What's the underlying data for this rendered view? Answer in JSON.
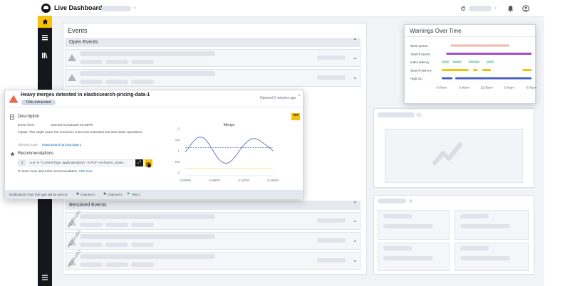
{
  "app": {
    "title": "Live Dashboard"
  },
  "colors": {
    "accent": "#f4c20a",
    "sidebar": "#16171c",
    "danger": "#e7664c",
    "link": "#006bb8"
  },
  "topbar": {
    "icons": [
      "refresh-icon",
      "bell-icon",
      "user-icon"
    ]
  },
  "events": {
    "title": "Events",
    "open_header": "Open Events",
    "resolved_header": "Resolved Events",
    "resolved_tag": "RESOLVED"
  },
  "card": {
    "title": "Heavy merges detected in elasticsearch-pricing-data-1",
    "badge": "Disk-exhausted",
    "opened": "Opened 2 minutes ago",
    "description_heading": "Description",
    "event_time_label": "Event Time:",
    "event_time_value": "Opened at 01/15/20 01:03PM",
    "impact": "Impact: This might cause the resources to become saturated and slow down operations.",
    "affected_label": "Affected node:",
    "affected_value": "elasticsearch-pricing-data-1",
    "recommendations_heading": "Recommendations",
    "rec_number": "1",
    "command": "curl -H \"Content-Type: application/json\" -X PUT <es-host>/_cluste...",
    "learn_more": "To learn more about this recommendation,",
    "learn_link": "click here",
    "footer_label": "Notifications from this type will be sent to:",
    "channels": [
      "Channel 1",
      "Channel 2",
      "Test 1"
    ]
  },
  "chart_data": [
    {
      "type": "line",
      "title": "Merge",
      "x": [
        "6:00PM",
        "6:05PM",
        "6:10PM",
        "6:15PM"
      ],
      "yticks": [
        "2",
        "1.5",
        "1",
        "0.5",
        "0"
      ],
      "ylim": [
        0,
        2
      ],
      "series": [
        {
          "x": [
            0,
            0.5,
            1,
            1.5,
            2,
            2.5,
            3,
            3.5,
            4,
            4.5,
            5,
            5.5,
            6,
            6.5,
            7,
            7.5,
            8,
            8.5,
            9,
            9.5,
            10,
            10.5,
            11,
            11.5,
            12,
            12.5,
            13,
            13.5,
            14,
            14.5,
            15
          ],
          "y": [
            0.95,
            1.1,
            1.3,
            1.46,
            1.58,
            1.63,
            1.6,
            1.5,
            1.33,
            1.12,
            0.9,
            0.7,
            0.55,
            0.46,
            0.43,
            0.47,
            0.57,
            0.72,
            0.9,
            1.08,
            1.25,
            1.4,
            1.5,
            1.55,
            1.55,
            1.5,
            1.42,
            1.32,
            1.22,
            1.12,
            1.0
          ]
        }
      ],
      "reference_lines": [
        {
          "value": 1.15,
          "color": "#4a5fc1",
          "style": "dashed"
        },
        {
          "value": 0.2,
          "color": "#f4c20a",
          "style": "dashed"
        }
      ],
      "grid": false
    },
    {
      "type": "timeline",
      "title": "Warnings Over Time",
      "categories": [
        "Write queue",
        "Search queue",
        "Index latency",
        "Search latency",
        "High GC"
      ],
      "x": [
        "6:00am",
        "9:00am",
        "12:00pm",
        "3:00pm",
        "6:00pm"
      ],
      "series": [
        {
          "name": "Write queue",
          "color": "#f2b8a8",
          "segments": [
            [
              0.1,
              0.75
            ]
          ]
        },
        {
          "name": "Search queue",
          "color": "#a34ac7",
          "segments": [
            [
              0.05,
              1.0
            ]
          ]
        },
        {
          "name": "Index latency",
          "color": "#9fd6c2",
          "segments": [
            [
              0.0,
              0.08
            ],
            [
              0.12,
              0.22
            ],
            [
              0.3,
              0.42
            ],
            [
              0.5,
              0.58
            ]
          ]
        },
        {
          "name": "Search latency",
          "color": "#f4c20a",
          "segments": [
            [
              0.0,
              0.3
            ],
            [
              0.35,
              0.4
            ],
            [
              0.45,
              0.55
            ],
            [
              0.9,
              1.0
            ]
          ]
        },
        {
          "name": "High GC",
          "color": "#4a5fc1",
          "segments": [
            [
              0.0,
              0.12
            ],
            [
              0.15,
              1.0
            ]
          ]
        }
      ]
    }
  ]
}
